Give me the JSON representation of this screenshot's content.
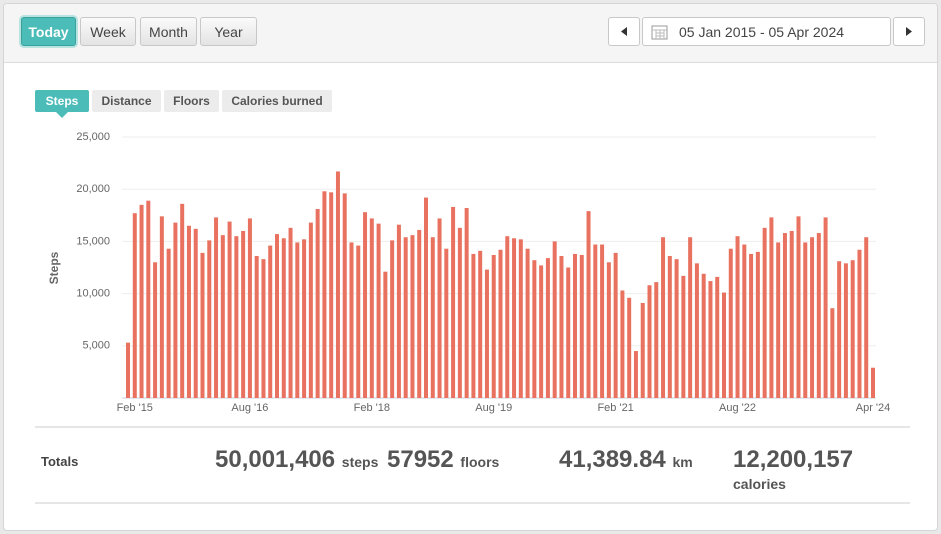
{
  "toolbar": {
    "periods": [
      "Today",
      "Week",
      "Month",
      "Year"
    ],
    "active_period": "Today",
    "date_range": "05 Jan 2015 - 05 Apr 2024"
  },
  "tabs": [
    "Steps",
    "Distance",
    "Floors",
    "Calories burned"
  ],
  "chart_data": {
    "type": "bar",
    "y_label": "Steps",
    "color": "#e8725f",
    "grid": true,
    "ylim": [
      0,
      25000
    ],
    "yticks": [
      {
        "value": 5000,
        "label": "5,000"
      },
      {
        "value": 10000,
        "label": "10,000"
      },
      {
        "value": 15000,
        "label": "15,000"
      },
      {
        "value": 20000,
        "label": "20,000"
      },
      {
        "value": 25000,
        "label": "25,000"
      }
    ],
    "categories": [
      null,
      "Feb '15",
      null,
      null,
      null,
      null,
      null,
      null,
      null,
      null,
      null,
      null,
      null,
      null,
      null,
      null,
      null,
      null,
      "Aug '16",
      null,
      null,
      null,
      null,
      null,
      null,
      null,
      null,
      null,
      null,
      null,
      null,
      null,
      null,
      null,
      null,
      null,
      "Feb '18",
      null,
      null,
      null,
      null,
      null,
      null,
      null,
      null,
      null,
      null,
      null,
      null,
      null,
      null,
      null,
      null,
      null,
      "Aug '19",
      null,
      null,
      null,
      null,
      null,
      null,
      null,
      null,
      null,
      null,
      null,
      null,
      null,
      null,
      null,
      null,
      null,
      "Feb '21",
      null,
      null,
      null,
      null,
      null,
      null,
      null,
      null,
      null,
      null,
      null,
      null,
      null,
      null,
      null,
      null,
      null,
      "Aug '22",
      null,
      null,
      null,
      null,
      null,
      null,
      null,
      null,
      null,
      null,
      null,
      null,
      null,
      null,
      null,
      null,
      null,
      null,
      null,
      "Apr '24"
    ],
    "values": [
      5300,
      17700,
      18500,
      18900,
      13000,
      17400,
      14300,
      16800,
      18600,
      16500,
      16200,
      13900,
      15100,
      17300,
      15600,
      16900,
      15500,
      16000,
      17200,
      13600,
      13300,
      14600,
      15700,
      15300,
      16300,
      14900,
      15200,
      16800,
      18100,
      19800,
      19700,
      21700,
      19600,
      14900,
      14600,
      17800,
      17200,
      16700,
      12100,
      15100,
      16600,
      15400,
      15600,
      16100,
      19200,
      15400,
      17200,
      14300,
      18300,
      16300,
      18200,
      13800,
      14100,
      12300,
      13700,
      14200,
      15500,
      15300,
      15200,
      14300,
      13200,
      12700,
      13400,
      15000,
      13600,
      12500,
      13800,
      13700,
      17900,
      14700,
      14700,
      13000,
      13900,
      10300,
      9600,
      4500,
      9100,
      10800,
      11100,
      15400,
      13600,
      13300,
      11700,
      15400,
      12900,
      11900,
      11200,
      11600,
      10100,
      14300,
      15500,
      14700,
      13800,
      14000,
      16300,
      17300,
      14900,
      15800,
      16000,
      17400,
      14900,
      15400,
      15800,
      17300,
      8600,
      13100,
      12900,
      13200,
      14200,
      15400,
      2900
    ]
  },
  "totals": {
    "label": "Totals",
    "items": [
      {
        "value": "50,001,406",
        "unit": "steps"
      },
      {
        "value": "57952",
        "unit": "floors"
      },
      {
        "value": "41,389.84",
        "unit": "km"
      },
      {
        "value": "12,200,157",
        "unit": "calories"
      }
    ]
  }
}
